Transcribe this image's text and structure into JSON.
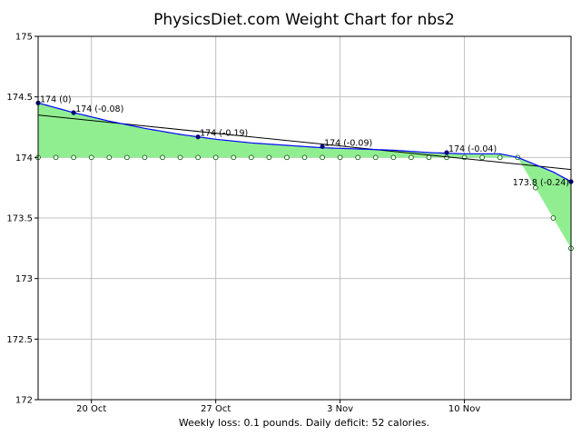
{
  "chart_data": {
    "type": "line",
    "title": "PhysicsDiet.com Weight Chart for nbs2",
    "footer": "Weekly loss: 0.1 pounds. Daily deficit: 52 calories.",
    "xlabel": "",
    "ylabel": "",
    "ylim": [
      172,
      175
    ],
    "y_ticks": [
      "172",
      "172.5",
      "173",
      "173.5",
      "174",
      "174.5",
      "175"
    ],
    "x_ticks": [
      {
        "label": "20 Oct",
        "day": 3
      },
      {
        "label": "27 Oct",
        "day": 10
      },
      {
        "label": "3 Nov",
        "day": 17
      },
      {
        "label": "10 Nov",
        "day": 24
      }
    ],
    "xlim": [
      0,
      30
    ],
    "grid": true,
    "colors": {
      "trend_line": "#0000ff",
      "fill": "#90ee90",
      "regression": "#000000",
      "weighins": "#000080",
      "grid": "#c0c0c0"
    },
    "series": [
      {
        "type": "trend",
        "x": [
          0,
          2,
          4,
          6,
          8,
          10,
          12,
          14,
          16,
          18,
          20,
          22,
          24,
          25,
          26,
          27,
          28,
          29,
          30
        ],
        "y": [
          174.45,
          174.37,
          174.3,
          174.24,
          174.19,
          174.15,
          174.12,
          174.1,
          174.08,
          174.07,
          174.06,
          174.04,
          174.03,
          174.03,
          174.03,
          174.0,
          173.94,
          173.88,
          173.8
        ]
      },
      {
        "type": "weight",
        "x": [
          0,
          1,
          2,
          3,
          4,
          5,
          6,
          7,
          8,
          9,
          10,
          11,
          12,
          13,
          14,
          15,
          16,
          17,
          18,
          19,
          20,
          21,
          22,
          23,
          24,
          25,
          26,
          27,
          28,
          29,
          30
        ],
        "y": [
          174,
          174,
          174,
          174,
          174,
          174,
          174,
          174,
          174,
          174,
          174,
          174,
          174,
          174,
          174,
          174,
          174,
          174,
          174,
          174,
          174,
          174,
          174,
          174,
          174,
          174,
          174,
          174,
          173.75,
          173.5,
          173.25
        ]
      },
      {
        "type": "regression",
        "x": [
          0,
          30
        ],
        "y": [
          174.35,
          173.9
        ]
      }
    ],
    "annotations": [
      {
        "x": 0,
        "y": 174.45,
        "text": "174 (0)"
      },
      {
        "x": 2,
        "y": 174.37,
        "text": "174 (-0.08)"
      },
      {
        "x": 9,
        "y": 174.17,
        "text": "174 (-0.19)"
      },
      {
        "x": 16,
        "y": 174.09,
        "text": "174 (-0.09)"
      },
      {
        "x": 23,
        "y": 174.04,
        "text": "174 (-0.04)"
      },
      {
        "x": 30,
        "y": 173.8,
        "text": "173.8 (-0.24)",
        "anchor": "end"
      }
    ]
  }
}
